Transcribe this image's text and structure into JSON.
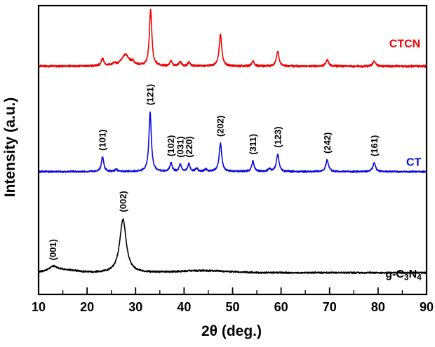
{
  "chart_data": {
    "type": "line",
    "title": "",
    "xlabel": "2θ (deg.)",
    "ylabel": "Intensity (a.u.)",
    "xlim": [
      10,
      90
    ],
    "ylim": [
      0,
      1
    ],
    "grid": false,
    "x_major_ticks": [
      10,
      20,
      30,
      40,
      50,
      60,
      70,
      80,
      90
    ],
    "x_minor_step": 5,
    "legend_position": "inline-right",
    "series": [
      {
        "name": "g-C3N4",
        "label_parts": [
          {
            "t": "g-C"
          },
          {
            "t": "3",
            "sub": true
          },
          {
            "t": "N"
          },
          {
            "t": "4",
            "sub": true
          }
        ],
        "color": "#000000",
        "baseline": 0.075,
        "noise": 0.0035,
        "label_pos": {
          "x": 81.5,
          "y": 0.058
        },
        "peaks": [
          {
            "x": 13.0,
            "h": 0.018,
            "w": 1.1
          },
          {
            "x": 15.5,
            "h": 0.008,
            "w": 2.5,
            "g": true
          },
          {
            "x": 27.4,
            "h": 0.185,
            "w": 0.8
          },
          {
            "x": 44.0,
            "h": 0.007,
            "w": 5.0,
            "g": true
          }
        ]
      },
      {
        "name": "CT",
        "label_parts": [
          {
            "t": "CT"
          }
        ],
        "color": "#0a0ae0",
        "baseline": 0.425,
        "noise": 0.0038,
        "label_pos": {
          "x": 85.8,
          "y": 0.445
        },
        "peaks": [
          {
            "x": 23.2,
            "h": 0.05,
            "w": 0.3
          },
          {
            "x": 26.0,
            "h": 0.007,
            "w": 0.3
          },
          {
            "x": 33.0,
            "h": 0.205,
            "w": 0.3
          },
          {
            "x": 37.3,
            "h": 0.03,
            "w": 0.28
          },
          {
            "x": 39.2,
            "h": 0.026,
            "w": 0.28
          },
          {
            "x": 41.0,
            "h": 0.026,
            "w": 0.28
          },
          {
            "x": 42.6,
            "h": 0.011,
            "w": 0.28
          },
          {
            "x": 44.5,
            "h": 0.009,
            "w": 0.28
          },
          {
            "x": 47.5,
            "h": 0.098,
            "w": 0.32
          },
          {
            "x": 54.2,
            "h": 0.036,
            "w": 0.3
          },
          {
            "x": 57.6,
            "h": 0.009,
            "w": 0.3
          },
          {
            "x": 59.3,
            "h": 0.06,
            "w": 0.32
          },
          {
            "x": 69.5,
            "h": 0.04,
            "w": 0.34
          },
          {
            "x": 79.2,
            "h": 0.03,
            "w": 0.34
          }
        ]
      },
      {
        "name": "CTCN",
        "label_parts": [
          {
            "t": "CTCN"
          }
        ],
        "color": "#ee0000",
        "baseline": 0.79,
        "noise": 0.0045,
        "label_pos": {
          "x": 82.3,
          "y": 0.855
        },
        "peaks": [
          {
            "x": 23.2,
            "h": 0.026,
            "w": 0.3
          },
          {
            "x": 25.6,
            "h": 0.008,
            "w": 0.5
          },
          {
            "x": 27.9,
            "h": 0.04,
            "w": 0.9
          },
          {
            "x": 29.4,
            "h": 0.012,
            "w": 0.35
          },
          {
            "x": 33.1,
            "h": 0.195,
            "w": 0.3
          },
          {
            "x": 37.3,
            "h": 0.017,
            "w": 0.28
          },
          {
            "x": 39.2,
            "h": 0.014,
            "w": 0.28
          },
          {
            "x": 41.0,
            "h": 0.014,
            "w": 0.28
          },
          {
            "x": 47.5,
            "h": 0.11,
            "w": 0.32
          },
          {
            "x": 54.2,
            "h": 0.017,
            "w": 0.3
          },
          {
            "x": 59.3,
            "h": 0.052,
            "w": 0.32
          },
          {
            "x": 69.5,
            "h": 0.022,
            "w": 0.34
          },
          {
            "x": 79.2,
            "h": 0.017,
            "w": 0.34
          }
        ]
      }
    ],
    "annotations": [
      {
        "text": "(001)",
        "x": 13.0,
        "y": 0.118,
        "series": "g-C3N4"
      },
      {
        "text": "(002)",
        "x": 27.4,
        "y": 0.285,
        "series": "g-C3N4"
      },
      {
        "text": "(101)",
        "x": 23.2,
        "y": 0.498,
        "series": "CT"
      },
      {
        "text": "(121)",
        "x": 33.0,
        "y": 0.655,
        "series": "CT"
      },
      {
        "text": "(102)",
        "x": 37.3,
        "y": 0.478,
        "series": "CT"
      },
      {
        "text": "(031)",
        "x": 39.2,
        "y": 0.474,
        "series": "CT"
      },
      {
        "text": "(220)",
        "x": 41.0,
        "y": 0.474,
        "series": "CT"
      },
      {
        "text": "(202)",
        "x": 47.5,
        "y": 0.546,
        "series": "CT"
      },
      {
        "text": "(311)",
        "x": 54.2,
        "y": 0.484,
        "series": "CT"
      },
      {
        "text": "(123)",
        "x": 59.3,
        "y": 0.508,
        "series": "CT"
      },
      {
        "text": "(242)",
        "x": 69.5,
        "y": 0.488,
        "series": "CT"
      },
      {
        "text": "(161)",
        "x": 79.2,
        "y": 0.478,
        "series": "CT"
      }
    ],
    "axis_color": "#000000",
    "frame": true
  }
}
